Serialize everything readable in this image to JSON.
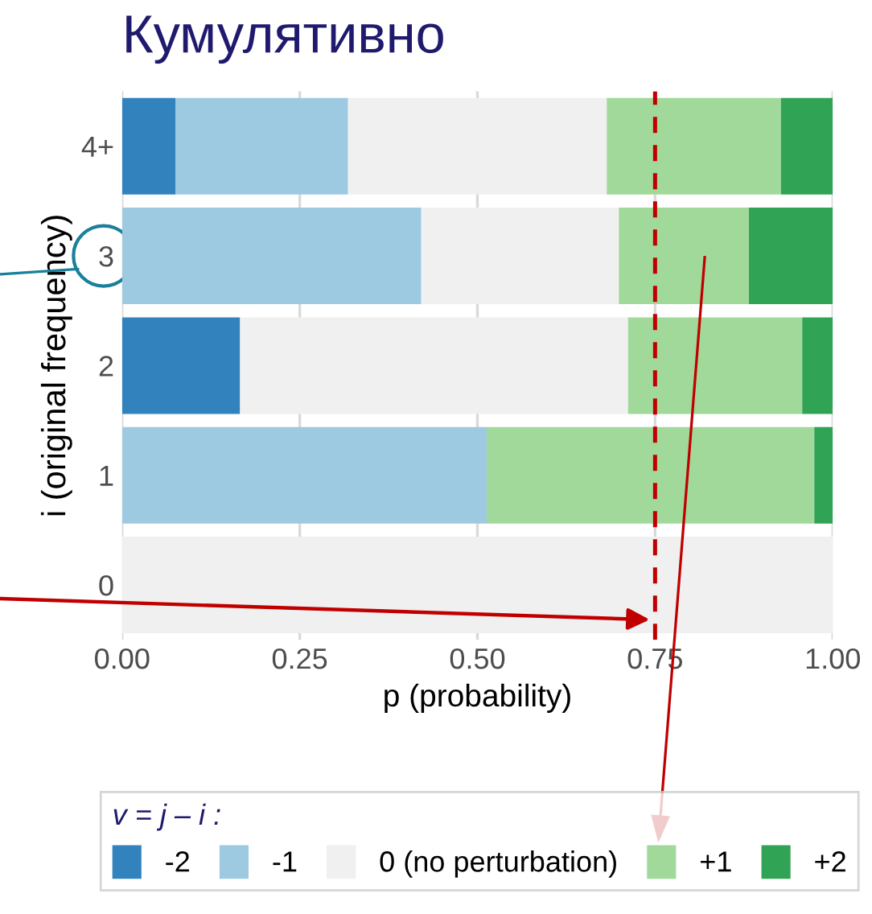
{
  "chart_data": {
    "type": "bar",
    "orientation": "horizontal",
    "stacked": true,
    "title": "Кумулятивно",
    "xlabel": "p (probability)",
    "ylabel": "i (original frequency)",
    "legend_title": "v = j – i :",
    "categories": [
      "4+",
      "3",
      "2",
      "1",
      "0"
    ],
    "series": [
      {
        "name": "-2",
        "color": "#3182bd",
        "values": [
          0.075,
          0,
          0.166,
          0,
          0
        ]
      },
      {
        "name": "-1",
        "color": "#9ecae1",
        "values": [
          0.243,
          0.421,
          0,
          0.513,
          0
        ]
      },
      {
        "name": "0 (no perturbation)",
        "color": "#f0f0f0",
        "values": [
          0.364,
          0.278,
          0.546,
          0,
          1.0
        ]
      },
      {
        "name": "+1",
        "color": "#a1d99b",
        "values": [
          0.245,
          0.183,
          0.245,
          0.461,
          0
        ]
      },
      {
        "name": "+2",
        "color": "#31a354",
        "values": [
          0.073,
          0.118,
          0.043,
          0.026,
          0
        ]
      }
    ],
    "xlim": [
      0,
      1
    ],
    "xticks": [
      {
        "value": 0,
        "label": "0.00"
      },
      {
        "value": 0.25,
        "label": "0.25"
      },
      {
        "value": 0.5,
        "label": "0.50"
      },
      {
        "value": 0.75,
        "label": "0.75"
      },
      {
        "value": 1,
        "label": "1.00"
      }
    ],
    "ref_lines": [
      {
        "axis": "x",
        "value": 0.75,
        "label": null,
        "color": "#c00000",
        "line_style": "dashed"
      }
    ],
    "grid": "x",
    "legend": "bottom"
  }
}
